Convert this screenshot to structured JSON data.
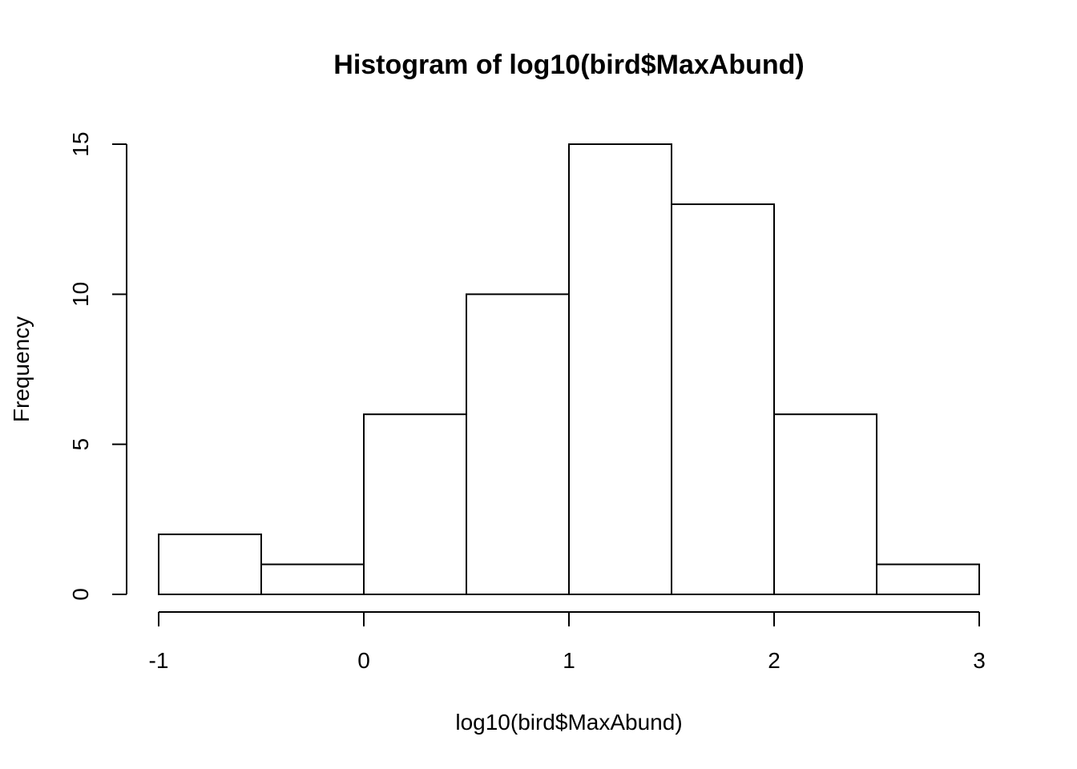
{
  "chart_data": {
    "type": "bar",
    "subtype": "histogram",
    "title": "Histogram of log10(bird$MaxAbund)",
    "xlabel": "log10(bird$MaxAbund)",
    "ylabel": "Frequency",
    "bins": [
      {
        "x0": -1.0,
        "x1": -0.5,
        "count": 2
      },
      {
        "x0": -0.5,
        "x1": 0.0,
        "count": 1
      },
      {
        "x0": 0.0,
        "x1": 0.5,
        "count": 6
      },
      {
        "x0": 0.5,
        "x1": 1.0,
        "count": 10
      },
      {
        "x0": 1.0,
        "x1": 1.5,
        "count": 15
      },
      {
        "x0": 1.5,
        "x1": 2.0,
        "count": 13
      },
      {
        "x0": 2.0,
        "x1": 2.5,
        "count": 6
      },
      {
        "x0": 2.5,
        "x1": 3.0,
        "count": 1
      }
    ],
    "xlim": [
      -1,
      3
    ],
    "ylim": [
      0,
      15
    ],
    "x_ticks": [
      -1,
      0,
      1,
      2,
      3
    ],
    "y_ticks": [
      0,
      5,
      10,
      15
    ],
    "grid": false,
    "bar_fill": "#ffffff",
    "bar_stroke": "#000000"
  }
}
